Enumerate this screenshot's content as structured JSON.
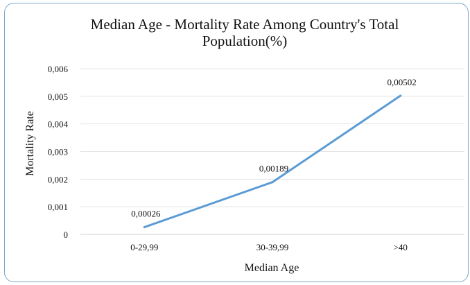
{
  "chart_data": {
    "type": "line",
    "title": "Median Age - Mortality Rate Among Country's Total Population(%)",
    "title_lines": [
      "Median Age - Mortality Rate Among Country's Total",
      "Population(%)"
    ],
    "xlabel": "Median Age",
    "ylabel": "Mortality Rate",
    "categories": [
      "0-29,99",
      "30-39,99",
      ">40"
    ],
    "series": [
      {
        "values": [
          0.00026,
          0.00189,
          0.00502
        ],
        "color": "#5b9bd5"
      }
    ],
    "data_labels": [
      "0,00026",
      "0,00189",
      "0,00502"
    ],
    "ylim": [
      0,
      0.006
    ],
    "yticks": [
      "0",
      "0,001",
      "0,002",
      "0,003",
      "0,004",
      "0,005",
      "0,006"
    ],
    "grid": true,
    "legend": "none"
  }
}
